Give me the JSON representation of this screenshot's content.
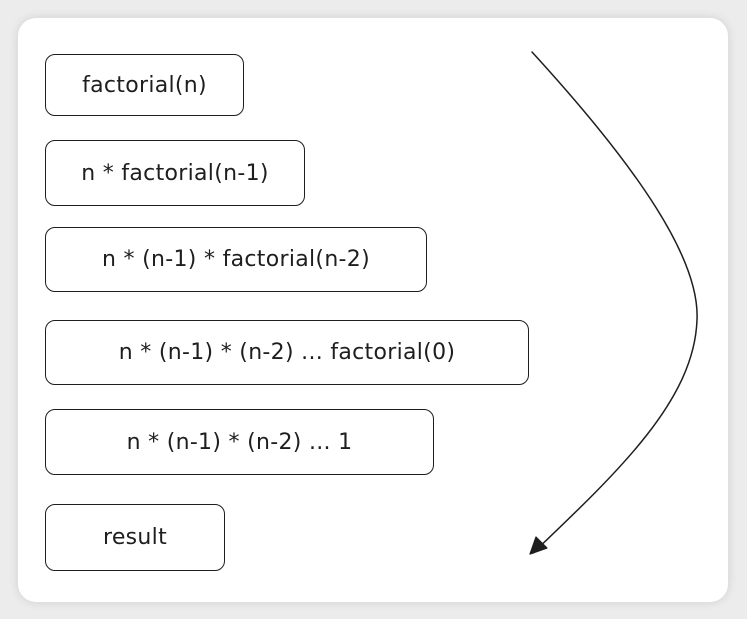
{
  "diagram": {
    "steps": [
      "factorial(n)",
      "n * factorial(n-1)",
      "n * (n-1) * factorial(n-2)",
      "n * (n-1) * (n-2) ... factorial(0)",
      "n * (n-1) * (n-2) ... 1",
      "result"
    ]
  },
  "colors": {
    "stroke": "#1e1e1e",
    "card_background": "#ffffff",
    "page_background": "#ececec"
  }
}
